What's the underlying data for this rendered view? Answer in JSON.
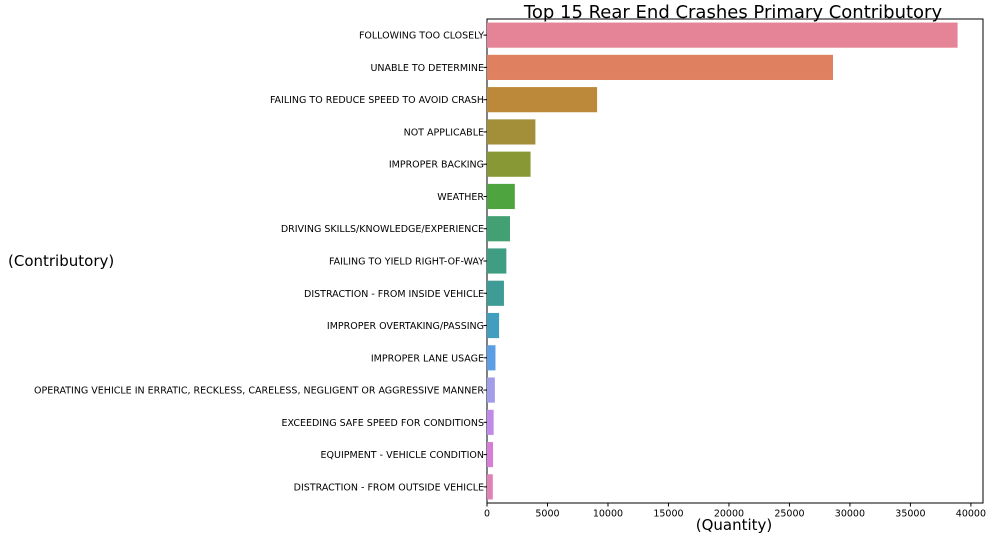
{
  "chart_data": {
    "type": "bar",
    "orientation": "horizontal",
    "title": "Top 15 Rear End Crashes Primary Contributory",
    "xlabel": "(Quantity)",
    "ylabel": "(Contributory)",
    "xlim": [
      0,
      41000
    ],
    "xticks": [
      0,
      5000,
      10000,
      15000,
      20000,
      25000,
      30000,
      35000,
      40000
    ],
    "grid": false,
    "categories": [
      "FOLLOWING TOO CLOSELY",
      "UNABLE TO DETERMINE",
      "FAILING TO REDUCE SPEED TO AVOID CRASH",
      "NOT APPLICABLE",
      "IMPROPER BACKING",
      "WEATHER",
      "DRIVING SKILLS/KNOWLEDGE/EXPERIENCE",
      "FAILING TO YIELD RIGHT-OF-WAY",
      "DISTRACTION - FROM INSIDE VEHICLE",
      "IMPROPER OVERTAKING/PASSING",
      "IMPROPER LANE USAGE",
      "OPERATING VEHICLE IN ERRATIC, RECKLESS, CARELESS, NEGLIGENT OR AGGRESSIVE MANNER",
      "EXCEEDING SAFE SPEED FOR CONDITIONS",
      "EQUIPMENT - VEHICLE CONDITION",
      "DISTRACTION - FROM OUTSIDE VEHICLE"
    ],
    "values": [
      38900,
      28600,
      9100,
      4000,
      3600,
      2300,
      1900,
      1600,
      1400,
      1000,
      700,
      650,
      550,
      500,
      480
    ],
    "colors": [
      "#e58497",
      "#df8060",
      "#bc883a",
      "#a38e3a",
      "#889835",
      "#4ea43f",
      "#42a072",
      "#3e9d83",
      "#3f9b95",
      "#419ebe",
      "#5c9ee4",
      "#a19de8",
      "#c08ae7",
      "#d97ed6",
      "#e281b4"
    ]
  }
}
